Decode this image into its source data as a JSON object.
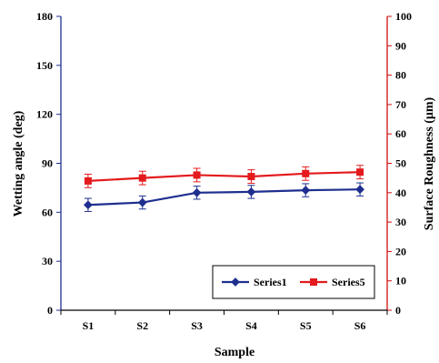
{
  "chart_data": {
    "type": "line",
    "categories": [
      "S1",
      "S2",
      "S3",
      "S4",
      "S5",
      "S6"
    ],
    "xlabel": "Sample",
    "ylabel_left": "Wetting angle (deg)",
    "ylabel_right": "Surface Roughness (μm)",
    "ylim_left": [
      0,
      180
    ],
    "yticks_left": [
      0,
      30,
      60,
      90,
      120,
      150,
      180
    ],
    "ylim_right": [
      0,
      100
    ],
    "yticks_right": [
      0,
      10,
      20,
      30,
      40,
      50,
      60,
      70,
      80,
      90,
      100
    ],
    "grid": false,
    "legend_position": "bottom-right",
    "series": [
      {
        "name": "Series1",
        "axis": "left",
        "marker": "diamond",
        "color": "#1f2f8f",
        "values": [
          64.5,
          66,
          72,
          72.5,
          73.5,
          74
        ],
        "errors": [
          4,
          4,
          4,
          4,
          4,
          4
        ]
      },
      {
        "name": "Series5",
        "axis": "right",
        "marker": "square",
        "color": "#e41a1c",
        "values": [
          44,
          45,
          46,
          45.5,
          46.5,
          47
        ],
        "errors": [
          2.3,
          2.3,
          2.3,
          2.3,
          2.3,
          2.3
        ]
      }
    ],
    "colors": {
      "left_axis": "#1f2f8f",
      "right_axis": "#cc1010"
    }
  }
}
